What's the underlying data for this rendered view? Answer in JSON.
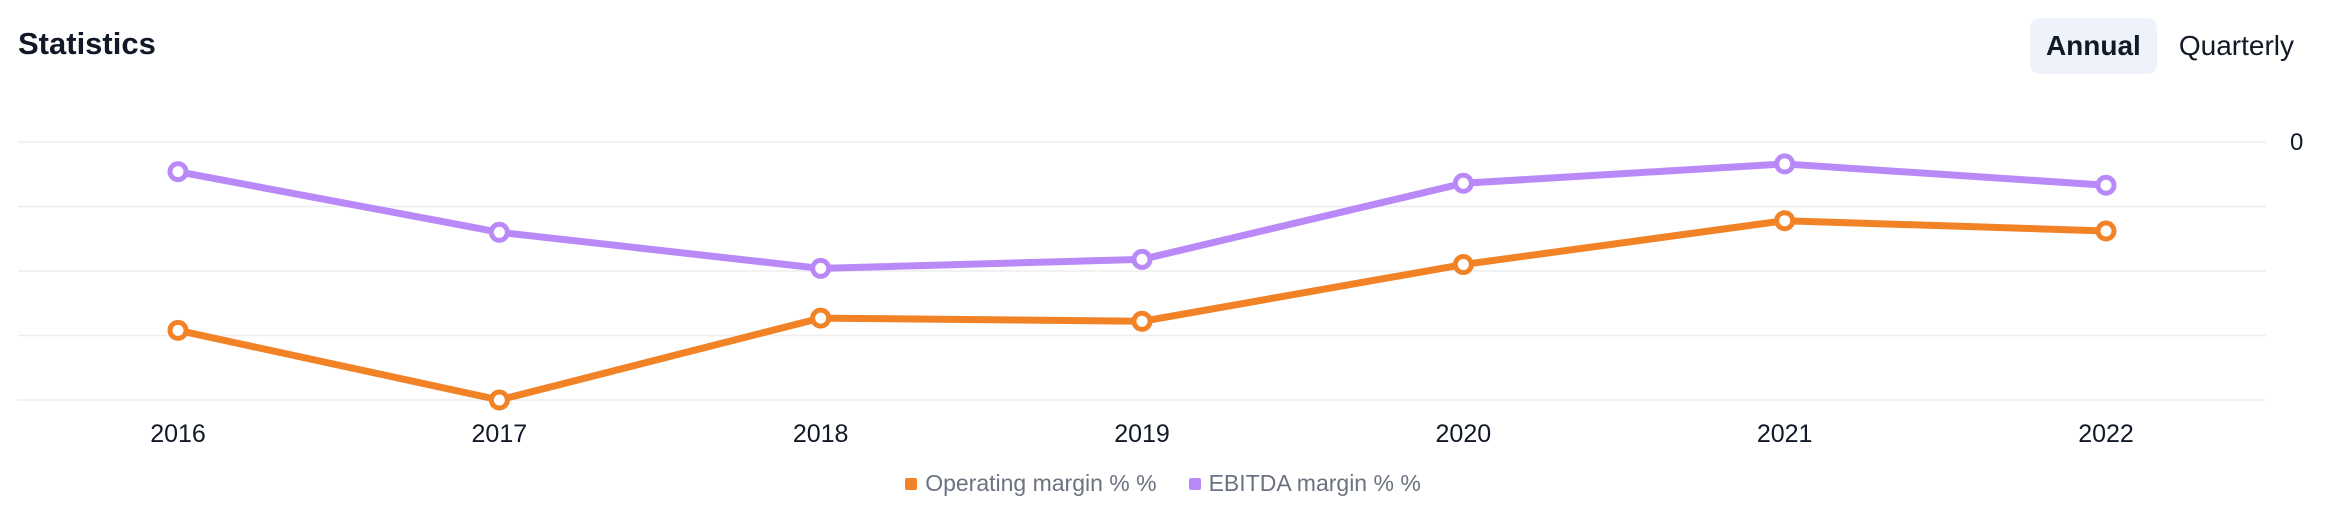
{
  "header": {
    "title": "Statistics"
  },
  "toggle": {
    "annual_label": "Annual",
    "quarterly_label": "Quarterly"
  },
  "colors": {
    "operating": "#f28226",
    "ebitda": "#b98af7",
    "grid": "#eeeeee"
  },
  "chart_data": {
    "type": "line",
    "title": "Statistics",
    "xlabel": "",
    "ylabel": "",
    "categories": [
      "2016",
      "2017",
      "2018",
      "2019",
      "2020",
      "2021",
      "2022"
    ],
    "yticks": [
      "0"
    ],
    "ylim": [
      -40,
      0
    ],
    "grid": true,
    "legend_position": "bottom-center",
    "series": [
      {
        "name": "Operating margin % %",
        "values": [
          -29.2,
          -40.0,
          -27.3,
          -27.8,
          -19.0,
          -12.2,
          -13.8
        ]
      },
      {
        "name": "EBITDA margin % %",
        "values": [
          -4.6,
          -14.0,
          -19.6,
          -18.2,
          -6.4,
          -3.4,
          -6.7
        ]
      }
    ]
  }
}
